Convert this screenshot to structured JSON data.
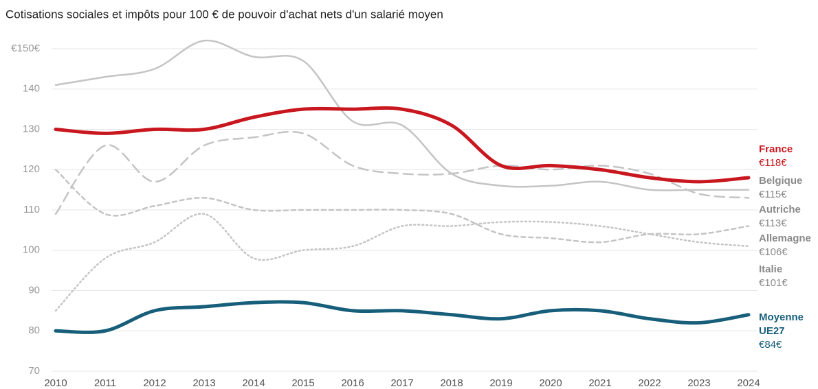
{
  "chart_data": {
    "type": "line",
    "title": "Cotisations sociales et impôts pour 100 € de pouvoir d'achat nets d'un salarié moyen",
    "categories": [
      "2010",
      "2011",
      "2012",
      "2013",
      "2014",
      "2015",
      "2016",
      "2017",
      "2018",
      "2019",
      "2020",
      "2021",
      "2022",
      "2023",
      "2024"
    ],
    "ylim": [
      70,
      150
    ],
    "yticks": [
      70,
      80,
      90,
      100,
      110,
      120,
      130,
      140,
      {
        "value": 150,
        "label": "€150€"
      }
    ],
    "grid": true,
    "series": [
      {
        "name": "Belgique",
        "color": "#c4c4c4",
        "label_color": "#8a8a8a",
        "line_style": "solid",
        "width": 2.5,
        "values": [
          141,
          143,
          145,
          152,
          148,
          147,
          132,
          131,
          119,
          116,
          116,
          117,
          115,
          115,
          115
        ],
        "value_labels": [
          null,
          null,
          null,
          null,
          null,
          null,
          null,
          null,
          null,
          null,
          null,
          null,
          null,
          null,
          "€115€"
        ]
      },
      {
        "name": "Autriche",
        "color": "#c4c4c4",
        "label_color": "#8a8a8a",
        "line_style": "dashed",
        "width": 2.5,
        "values": [
          109,
          126,
          117,
          126,
          128,
          129,
          121,
          119,
          119,
          121,
          120,
          121,
          119,
          114,
          113
        ],
        "value_labels": [
          null,
          null,
          null,
          null,
          null,
          null,
          null,
          null,
          null,
          null,
          null,
          null,
          null,
          null,
          "€113€"
        ]
      },
      {
        "name": "Allemagne",
        "color": "#c4c4c4",
        "label_color": "#8a8a8a",
        "line_style": "short-dashed",
        "width": 2.5,
        "values": [
          120,
          109,
          111,
          113,
          110,
          110,
          110,
          110,
          109,
          104,
          103,
          102,
          104,
          104,
          106
        ],
        "value_labels": [
          null,
          null,
          null,
          null,
          null,
          null,
          null,
          null,
          null,
          null,
          null,
          null,
          null,
          null,
          "€106€"
        ]
      },
      {
        "name": "Italie",
        "color": "#c4c4c4",
        "label_color": "#8a8a8a",
        "line_style": "dotted",
        "width": 2.5,
        "values": [
          85,
          98,
          102,
          109,
          98,
          100,
          101,
          106,
          106,
          107,
          107,
          106,
          104,
          102,
          101
        ],
        "value_labels": [
          null,
          null,
          null,
          null,
          null,
          null,
          null,
          null,
          null,
          null,
          null,
          null,
          null,
          null,
          "€101€"
        ]
      },
      {
        "name": "France",
        "color": "#c8171e",
        "label_color": "#c8171e",
        "line_style": "solid",
        "width": 5,
        "values": [
          130,
          129,
          130,
          130,
          133,
          135,
          135,
          135,
          131,
          121,
          121,
          120,
          118,
          117,
          118
        ],
        "value_labels": [
          null,
          null,
          null,
          null,
          null,
          null,
          null,
          null,
          null,
          null,
          null,
          null,
          null,
          null,
          "€118€"
        ]
      },
      {
        "name": "Moyenne UE27",
        "color": "#175e7a",
        "label_color": "#175e7a",
        "line_style": "solid",
        "width": 5,
        "values": [
          80,
          80,
          85,
          86,
          87,
          87,
          85,
          85,
          84,
          83,
          85,
          85,
          83,
          82,
          84
        ],
        "value_labels": [
          null,
          null,
          null,
          null,
          null,
          null,
          null,
          null,
          null,
          null,
          null,
          null,
          null,
          null,
          "€84€"
        ]
      }
    ]
  }
}
